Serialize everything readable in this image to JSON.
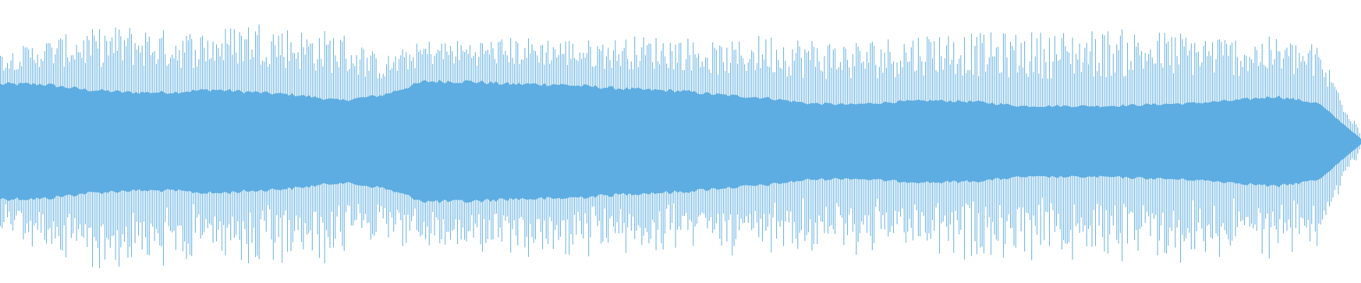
{
  "waveform": {
    "color": "#5dade2",
    "background": "#ffffff",
    "peak_amplitude": [
      0.63,
      0.72,
      0.79,
      0.83,
      0.79,
      0.79,
      0.87,
      0.8,
      0.79,
      0.6,
      0.72,
      0.72,
      0.74,
      0.74,
      0.72,
      0.75,
      0.75,
      0.69,
      0.77,
      0.74,
      0.72,
      0.75,
      0.79,
      0.77,
      0.78,
      0.79,
      0.8,
      0.79,
      0.78,
      0.75,
      0.74,
      0.69,
      0.08
    ],
    "rms_amplitude": [
      0.42,
      0.42,
      0.38,
      0.36,
      0.36,
      0.38,
      0.36,
      0.34,
      0.3,
      0.34,
      0.44,
      0.44,
      0.42,
      0.42,
      0.4,
      0.38,
      0.37,
      0.34,
      0.32,
      0.28,
      0.27,
      0.29,
      0.3,
      0.29,
      0.26,
      0.26,
      0.26,
      0.27,
      0.28,
      0.3,
      0.33,
      0.28,
      0.02
    ]
  }
}
